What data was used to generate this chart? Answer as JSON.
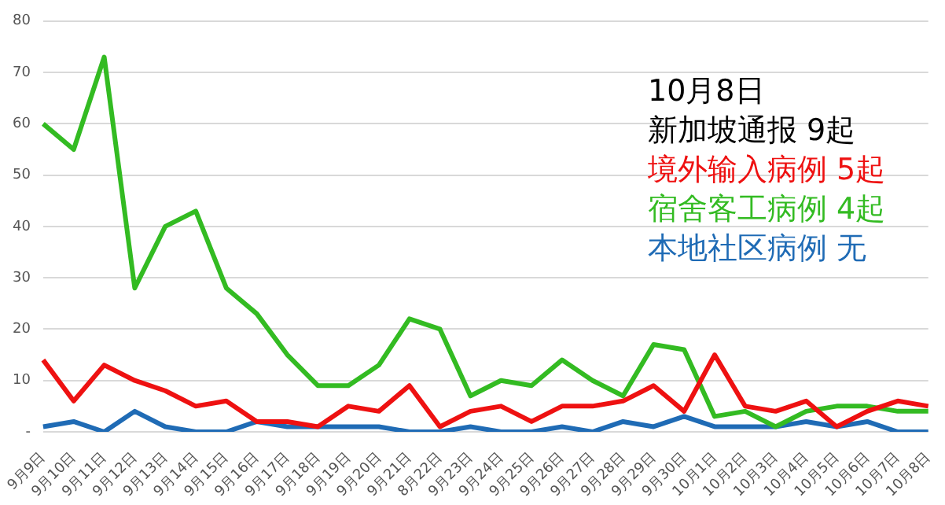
{
  "chart_data": {
    "type": "line",
    "categories": [
      "9月9日",
      "9月10日",
      "9月11日",
      "9月12日",
      "9月13日",
      "9月14日",
      "9月15日",
      "9月16日",
      "9月17日",
      "9月18日",
      "9月19日",
      "9月20日",
      "9月21日",
      "8月22日",
      "9月23日",
      "9月24日",
      "9月25日",
      "9月26日",
      "9月27日",
      "9月28日",
      "9月29日",
      "9月30日",
      "10月1日",
      "10月2日",
      "10月3日",
      "10月4日",
      "10月5日",
      "10月6日",
      "10月7日",
      "10月8日"
    ],
    "series": [
      {
        "color": "#ee1111",
        "values": [
          14,
          6,
          13,
          10,
          8,
          5,
          6,
          2,
          2,
          1,
          5,
          4,
          9,
          1,
          4,
          5,
          2,
          5,
          5,
          6,
          9,
          4,
          15,
          5,
          4,
          6,
          1,
          4,
          6,
          5
        ]
      },
      {
        "color": "#33bb22",
        "values": [
          60,
          55,
          73,
          28,
          40,
          43,
          28,
          23,
          15,
          9,
          9,
          13,
          22,
          20,
          7,
          10,
          9,
          14,
          10,
          7,
          17,
          16,
          3,
          4,
          1,
          4,
          5,
          5,
          4,
          4
        ]
      },
      {
        "color": "#1f6bb5",
        "values": [
          1,
          2,
          0,
          4,
          1,
          0,
          0,
          2,
          1,
          1,
          1,
          1,
          0,
          0,
          1,
          0,
          0,
          1,
          0,
          2,
          1,
          3,
          1,
          1,
          1,
          2,
          1,
          2,
          0,
          0
        ]
      }
    ],
    "ylim": [
      0,
      80
    ],
    "yticks": [
      {
        "value": 0,
        "label": "-"
      },
      10,
      20,
      30,
      40,
      50,
      60,
      70,
      80
    ],
    "grid": "y",
    "legend": false,
    "marker": "none",
    "line_style": "solid",
    "annotations": [
      "10月8日",
      "新加坡通报 9起",
      "境外输入病例 5起",
      "宿舍客工病例 4起",
      "本地社区病例 无"
    ]
  }
}
